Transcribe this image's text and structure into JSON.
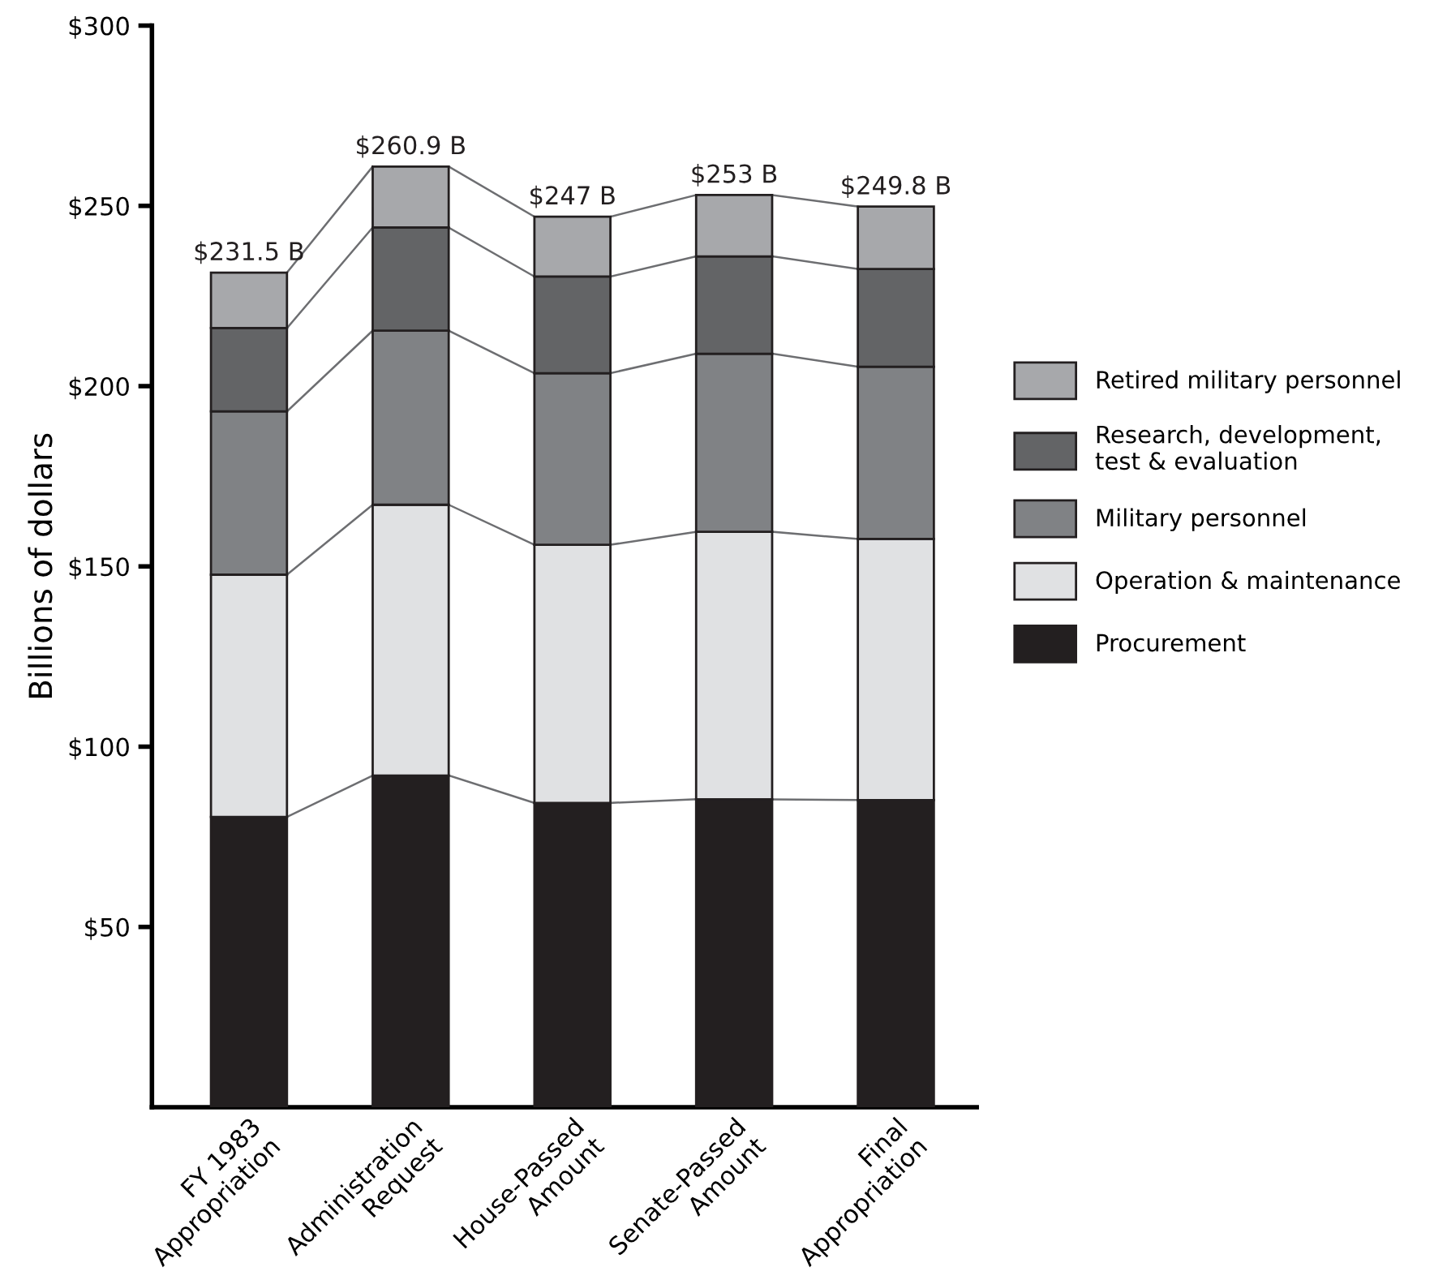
{
  "chart_data": {
    "type": "bar",
    "stacked": true,
    "ylabel": "Billions of dollars",
    "categories": [
      "FY 1983\nAppropriation",
      "Administration\nRequest",
      "House-Passed\nAmount",
      "Senate-Passed\nAmount",
      "Final\nAppropriation"
    ],
    "series": [
      {
        "name": "Procurement",
        "color": "#231f20",
        "values": [
          80.5,
          92.0,
          84.4,
          85.4,
          85.2
        ]
      },
      {
        "name": "Operation & maintenance",
        "color": "#e0e1e3",
        "values": [
          67.2,
          75.1,
          71.6,
          74.2,
          72.4
        ]
      },
      {
        "name": "Military personnel",
        "color": "#808285",
        "values": [
          45.3,
          48.3,
          47.6,
          49.4,
          47.8
        ]
      },
      {
        "name": "Research, development,\ntest & evaluation",
        "color": "#636466",
        "values": [
          23.1,
          28.6,
          26.8,
          27.0,
          27.1
        ]
      },
      {
        "name": "Retired military personnel",
        "color": "#a7a8ab",
        "values": [
          15.4,
          16.9,
          16.6,
          17.0,
          17.3
        ]
      }
    ],
    "totals": [
      "$231.5 B",
      "$260.9 B",
      "$247 B",
      "$253 B",
      "$249.8 B"
    ],
    "ylim": [
      0,
      300
    ],
    "yticks": [
      {
        "value": 50,
        "label": "$50"
      },
      {
        "value": 100,
        "label": "$100"
      },
      {
        "value": 150,
        "label": "$150"
      },
      {
        "value": 200,
        "label": "$200"
      },
      {
        "value": 250,
        "label": "$250"
      },
      {
        "value": 300,
        "label": "$300"
      }
    ],
    "grid": false,
    "legend": "right"
  }
}
